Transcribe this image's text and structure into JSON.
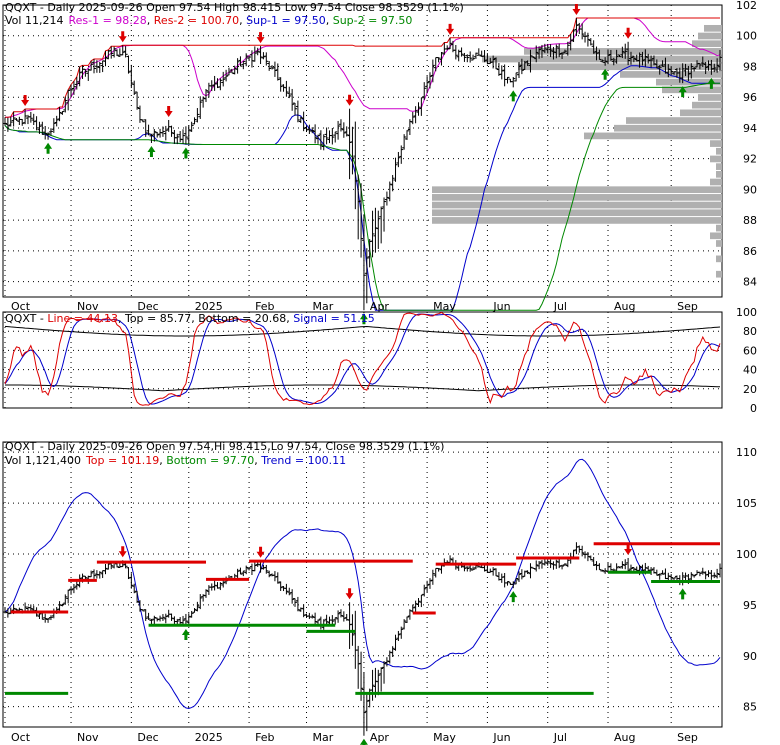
{
  "colors": {
    "res": "#dd0000",
    "sup": "#008800",
    "band_upper": "#cc00cc",
    "band_lower": "#0000cc",
    "vol_profile": "#b0b0b0",
    "price": "#000000",
    "line_red": "#dd0000",
    "signal_blue": "#0000cc",
    "trend_blue": "#0000cc"
  },
  "panel1": {
    "header": {
      "line1": "QQXT - Daily 2025-09-26 Open 97.54  High 98.415  Low 97.54  Close 98.3529 (1.1%)",
      "vol": "Vol 11,214",
      "res1": "Res-1 = 98.28",
      "res2": "Res-2 = 100.70",
      "sup1": "Sup-1 = 97.50",
      "sup2": "Sup-2 = 97.50"
    },
    "ylim": [
      83,
      102
    ],
    "yticks": [
      "84",
      "86",
      "88",
      "90",
      "92",
      "94",
      "96",
      "98",
      "100",
      "102"
    ]
  },
  "panel2": {
    "header": {
      "name": "QQXT - ",
      "line": "Line = 44.13",
      "top": "Top = 85.77",
      "bottom": "Bottom = 20.68",
      "signal": "Signal = 51.15"
    },
    "ylim": [
      0,
      100
    ],
    "yticks": [
      "0",
      "20",
      "40",
      "60",
      "80",
      "100"
    ]
  },
  "panel3": {
    "header": {
      "line1": "QQXT - Daily 2025-09-26 Open 97.54,Hi 98.415,Lo 97.54, Close 98.3529 (1.1%)",
      "vol": "Vol 1,121,400",
      "top": "Top = 101.19",
      "bottom": "Bottom = 97.70",
      "trend": "Trend = 100.11"
    },
    "ylim": [
      83,
      111
    ],
    "yticks": [
      "85",
      "90",
      "95",
      "100",
      "105",
      "110"
    ]
  },
  "xaxis": {
    "labels": [
      {
        "label": "Oct",
        "i": 0
      },
      {
        "label": "Nov",
        "i": 23
      },
      {
        "label": "Dec",
        "i": 44
      },
      {
        "label": "2025",
        "i": 64
      },
      {
        "label": "Feb",
        "i": 85
      },
      {
        "label": "Mar",
        "i": 105
      },
      {
        "label": "Apr",
        "i": 125
      },
      {
        "label": "May",
        "i": 147
      },
      {
        "label": "Jun",
        "i": 168
      },
      {
        "label": "Jul",
        "i": 189
      },
      {
        "label": "Aug",
        "i": 210
      },
      {
        "label": "Sep",
        "i": 232
      }
    ]
  },
  "chart_data": {
    "type": "line",
    "n_bars": 250,
    "close_anchors": [
      [
        0,
        94.2
      ],
      [
        8,
        94.6
      ],
      [
        14,
        93.6
      ],
      [
        18,
        94.3
      ],
      [
        22,
        96.3
      ],
      [
        27,
        97.6
      ],
      [
        33,
        98.3
      ],
      [
        38,
        99.0
      ],
      [
        42,
        98.6
      ],
      [
        46,
        95.2
      ],
      [
        50,
        93.5
      ],
      [
        56,
        93.9
      ],
      [
        62,
        93.4
      ],
      [
        66,
        94.6
      ],
      [
        70,
        96.4
      ],
      [
        76,
        97.2
      ],
      [
        82,
        98.2
      ],
      [
        88,
        98.9
      ],
      [
        92,
        98.0
      ],
      [
        97,
        96.6
      ],
      [
        103,
        94.4
      ],
      [
        110,
        93.1
      ],
      [
        116,
        94.0
      ],
      [
        120,
        93.0
      ],
      [
        123,
        89.5
      ],
      [
        125,
        84.4
      ],
      [
        127,
        86.5
      ],
      [
        131,
        88.5
      ],
      [
        136,
        91.5
      ],
      [
        141,
        94.5
      ],
      [
        146,
        96.3
      ],
      [
        150,
        98.4
      ],
      [
        154,
        99.4
      ],
      [
        158,
        98.9
      ],
      [
        164,
        98.7
      ],
      [
        170,
        98.2
      ],
      [
        175,
        97.0
      ],
      [
        180,
        97.9
      ],
      [
        185,
        98.9
      ],
      [
        190,
        99.2
      ],
      [
        195,
        99.0
      ],
      [
        199,
        100.6
      ],
      [
        203,
        99.8
      ],
      [
        207,
        98.2
      ],
      [
        212,
        98.7
      ],
      [
        216,
        98.7
      ],
      [
        222,
        98.5
      ],
      [
        226,
        98.0
      ],
      [
        230,
        97.7
      ],
      [
        235,
        97.5
      ],
      [
        240,
        98.0
      ],
      [
        245,
        97.9
      ],
      [
        249,
        98.35
      ]
    ],
    "res1_value": 98.28,
    "res2_value": 100.7,
    "sup1_value": 97.5,
    "sup2_value": 97.5,
    "panel3_top": 101.19,
    "panel3_bottom": 97.7,
    "panel3_trend": 100.11,
    "osc_line_last": 44.13,
    "osc_signal_last": 51.15,
    "osc_top_last": 85.77,
    "osc_bottom_last": 20.68
  }
}
